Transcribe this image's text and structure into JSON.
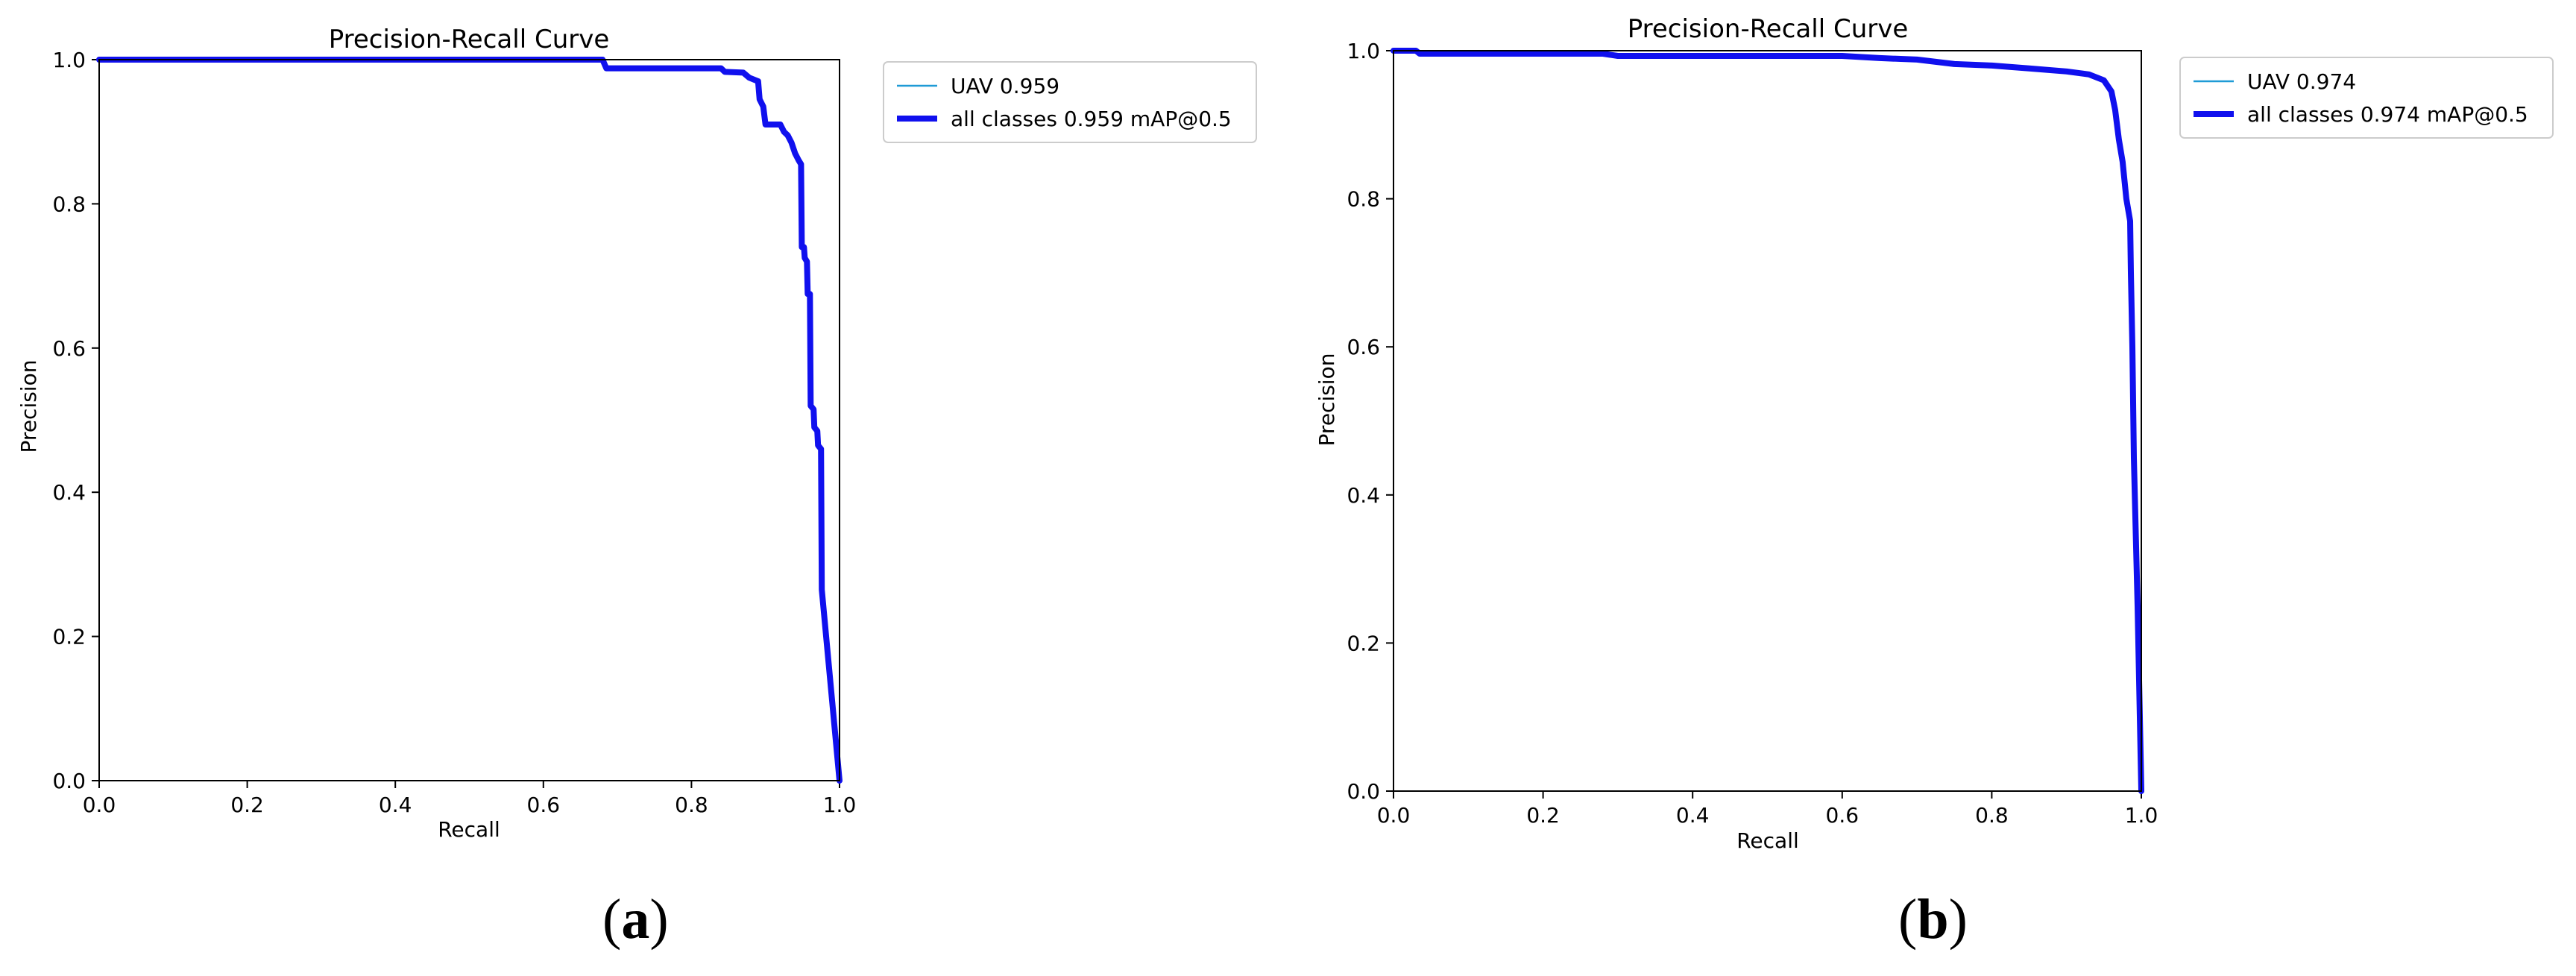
{
  "colors": {
    "uav": "#1f9bd6",
    "all_classes": "#1010ee",
    "axis": "#000000",
    "legend_border": "#cccccc"
  },
  "chart_data": [
    {
      "panel_label": "a",
      "type": "line",
      "title": "Precision-Recall Curve",
      "xlabel": "Recall",
      "ylabel": "Precision",
      "xlim": [
        0,
        1
      ],
      "ylim": [
        0,
        1
      ],
      "xticks": [
        "0.0",
        "0.2",
        "0.4",
        "0.6",
        "0.8",
        "1.0"
      ],
      "yticks": [
        "0.0",
        "0.2",
        "0.4",
        "0.6",
        "0.8",
        "1.0"
      ],
      "grid": false,
      "legend_position": "outside-right-top",
      "series": [
        {
          "name": "UAV 0.959",
          "color": "#1f9bd6",
          "width": "thin",
          "points": [
            [
              0,
              1
            ],
            [
              0.68,
              1
            ],
            [
              0.685,
              0.988
            ],
            [
              0.84,
              0.988
            ],
            [
              0.845,
              0.983
            ],
            [
              0.87,
              0.982
            ],
            [
              0.878,
              0.975
            ],
            [
              0.89,
              0.97
            ],
            [
              0.892,
              0.945
            ],
            [
              0.897,
              0.935
            ],
            [
              0.9,
              0.91
            ],
            [
              0.92,
              0.91
            ],
            [
              0.925,
              0.9
            ],
            [
              0.93,
              0.895
            ],
            [
              0.935,
              0.885
            ],
            [
              0.94,
              0.87
            ],
            [
              0.945,
              0.86
            ],
            [
              0.948,
              0.855
            ],
            [
              0.949,
              0.74
            ],
            [
              0.952,
              0.74
            ],
            [
              0.953,
              0.725
            ],
            [
              0.956,
              0.72
            ],
            [
              0.957,
              0.675
            ],
            [
              0.96,
              0.675
            ],
            [
              0.961,
              0.52
            ],
            [
              0.965,
              0.515
            ],
            [
              0.966,
              0.49
            ],
            [
              0.97,
              0.485
            ],
            [
              0.971,
              0.465
            ],
            [
              0.975,
              0.46
            ],
            [
              0.976,
              0.265
            ],
            [
              1.0,
              0
            ]
          ]
        },
        {
          "name": "all classes 0.959 mAP@0.5",
          "color": "#1010ee",
          "width": "thick",
          "points": [
            [
              0,
              1
            ],
            [
              0.68,
              1
            ],
            [
              0.685,
              0.988
            ],
            [
              0.84,
              0.988
            ],
            [
              0.845,
              0.983
            ],
            [
              0.87,
              0.982
            ],
            [
              0.878,
              0.975
            ],
            [
              0.89,
              0.97
            ],
            [
              0.892,
              0.945
            ],
            [
              0.897,
              0.935
            ],
            [
              0.9,
              0.91
            ],
            [
              0.92,
              0.91
            ],
            [
              0.925,
              0.9
            ],
            [
              0.93,
              0.895
            ],
            [
              0.935,
              0.885
            ],
            [
              0.94,
              0.87
            ],
            [
              0.945,
              0.86
            ],
            [
              0.948,
              0.855
            ],
            [
              0.949,
              0.74
            ],
            [
              0.952,
              0.74
            ],
            [
              0.953,
              0.725
            ],
            [
              0.956,
              0.72
            ],
            [
              0.957,
              0.675
            ],
            [
              0.96,
              0.675
            ],
            [
              0.961,
              0.52
            ],
            [
              0.965,
              0.515
            ],
            [
              0.966,
              0.49
            ],
            [
              0.97,
              0.485
            ],
            [
              0.971,
              0.465
            ],
            [
              0.975,
              0.46
            ],
            [
              0.976,
              0.265
            ],
            [
              1.0,
              0
            ]
          ]
        }
      ]
    },
    {
      "panel_label": "b",
      "type": "line",
      "title": "Precision-Recall Curve",
      "xlabel": "Recall",
      "ylabel": "Precision",
      "xlim": [
        0,
        1
      ],
      "ylim": [
        0,
        1
      ],
      "xticks": [
        "0.0",
        "0.2",
        "0.4",
        "0.6",
        "0.8",
        "1.0"
      ],
      "yticks": [
        "0.0",
        "0.2",
        "0.4",
        "0.6",
        "0.8",
        "1.0"
      ],
      "grid": false,
      "legend_position": "outside-right-top",
      "series": [
        {
          "name": "UAV 0.974",
          "color": "#1f9bd6",
          "width": "thin",
          "points": [
            [
              0,
              1
            ],
            [
              0.03,
              1
            ],
            [
              0.035,
              0.996
            ],
            [
              0.28,
              0.996
            ],
            [
              0.3,
              0.993
            ],
            [
              0.6,
              0.993
            ],
            [
              0.65,
              0.99
            ],
            [
              0.7,
              0.988
            ],
            [
              0.75,
              0.982
            ],
            [
              0.8,
              0.98
            ],
            [
              0.85,
              0.976
            ],
            [
              0.9,
              0.972
            ],
            [
              0.93,
              0.968
            ],
            [
              0.95,
              0.96
            ],
            [
              0.96,
              0.945
            ],
            [
              0.965,
              0.92
            ],
            [
              0.97,
              0.88
            ],
            [
              0.975,
              0.85
            ],
            [
              0.98,
              0.8
            ],
            [
              0.985,
              0.77
            ],
            [
              0.986,
              0.7
            ],
            [
              0.988,
              0.6
            ],
            [
              0.99,
              0.45
            ],
            [
              0.995,
              0.25
            ],
            [
              1.0,
              0
            ]
          ]
        },
        {
          "name": "all classes 0.974 mAP@0.5",
          "color": "#1010ee",
          "width": "thick",
          "points": [
            [
              0,
              1
            ],
            [
              0.03,
              1
            ],
            [
              0.035,
              0.996
            ],
            [
              0.28,
              0.996
            ],
            [
              0.3,
              0.993
            ],
            [
              0.6,
              0.993
            ],
            [
              0.65,
              0.99
            ],
            [
              0.7,
              0.988
            ],
            [
              0.75,
              0.982
            ],
            [
              0.8,
              0.98
            ],
            [
              0.85,
              0.976
            ],
            [
              0.9,
              0.972
            ],
            [
              0.93,
              0.968
            ],
            [
              0.95,
              0.96
            ],
            [
              0.96,
              0.945
            ],
            [
              0.965,
              0.92
            ],
            [
              0.97,
              0.88
            ],
            [
              0.975,
              0.85
            ],
            [
              0.98,
              0.8
            ],
            [
              0.985,
              0.77
            ],
            [
              0.986,
              0.7
            ],
            [
              0.988,
              0.6
            ],
            [
              0.99,
              0.45
            ],
            [
              0.995,
              0.25
            ],
            [
              1.0,
              0
            ]
          ]
        }
      ]
    }
  ]
}
